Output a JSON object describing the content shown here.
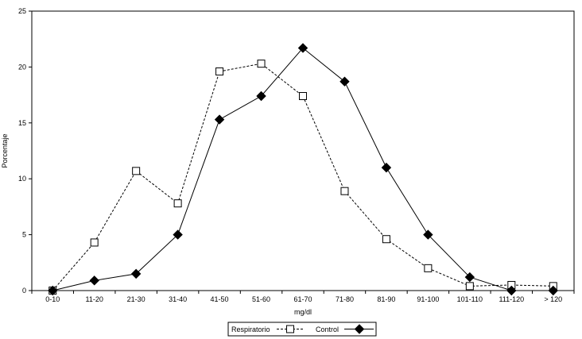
{
  "chart_data": {
    "type": "line",
    "title": "",
    "xlabel": "mg/dl",
    "ylabel": "Porcentaje",
    "categories": [
      "0-10",
      "11-20",
      "21-30",
      "31-40",
      "41-50",
      "51-60",
      "61-70",
      "71-80",
      "81-90",
      "91-100",
      "101-110",
      "111-120",
      "> 120"
    ],
    "ylim": [
      0,
      25
    ],
    "yticks": [
      0,
      5,
      10,
      15,
      20,
      25
    ],
    "grid": false,
    "legend_position": "bottom",
    "series": [
      {
        "name": "Respiratorio",
        "values": [
          0,
          4.3,
          10.7,
          7.8,
          19.6,
          20.3,
          17.4,
          8.9,
          4.6,
          2.0,
          0.4,
          0.5,
          0.4
        ],
        "line_style": "dashed",
        "marker": "square-open",
        "color": "#000000"
      },
      {
        "name": "Control",
        "values": [
          0,
          0.9,
          1.5,
          5.0,
          15.3,
          17.4,
          21.7,
          18.7,
          11.0,
          5.0,
          1.2,
          0.0,
          0.0
        ],
        "line_style": "solid",
        "marker": "diamond-filled",
        "color": "#000000"
      }
    ]
  }
}
